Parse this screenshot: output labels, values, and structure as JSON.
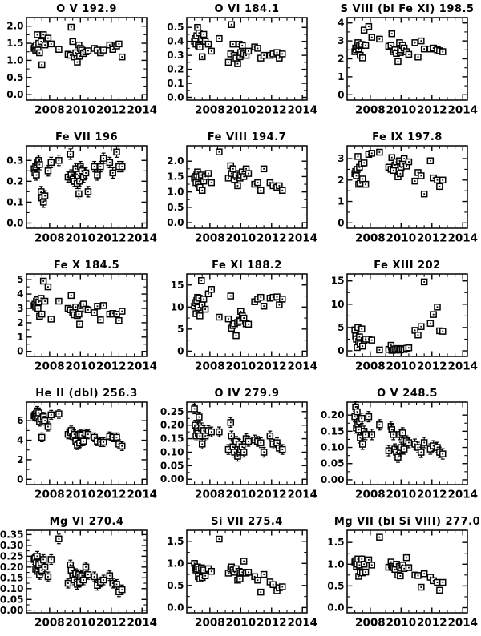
{
  "figure": {
    "background": "#ffffff",
    "ink_color": "#000000",
    "marker": "open-square-with-dot",
    "layout": {
      "cols": 3,
      "rows": 5
    }
  },
  "chart_data": {
    "type": "scatter",
    "legend": "none",
    "grid": "off",
    "xlim": [
      2006.5,
      2014.3
    ],
    "xticks": [
      2008,
      2010,
      2012,
      2014
    ],
    "xtick_labels": [
      "2008",
      "2010",
      "2012",
      "2014"
    ],
    "x_years": [
      2007.0,
      2007.05,
      2007.1,
      2007.15,
      2007.2,
      2007.25,
      2007.3,
      2007.35,
      2007.45,
      2007.5,
      2007.6,
      2007.7,
      2007.9,
      2008.1,
      2008.6,
      2009.2,
      2009.35,
      2009.4,
      2009.5,
      2009.6,
      2009.7,
      2009.8,
      2009.9,
      2009.95,
      2010.0,
      2010.1,
      2010.2,
      2010.35,
      2010.5,
      2010.9,
      2011.1,
      2011.3,
      2011.5,
      2011.9,
      2012.1,
      2012.35,
      2012.5,
      2012.7
    ],
    "subplots": [
      {
        "title": "O V 192.9",
        "ylim": [
          -0.16,
          2.25
        ],
        "yticks": [
          0,
          0.5,
          1,
          1.5,
          2
        ],
        "ylabels": [
          "0.0",
          "0.5",
          "1.0",
          "1.5",
          "2.0"
        ],
        "err": 0.06,
        "y": [
          1.35,
          1.4,
          1.28,
          1.45,
          1.75,
          1.3,
          1.5,
          1.22,
          1.55,
          0.87,
          1.75,
          1.45,
          1.65,
          1.48,
          1.32,
          1.18,
          1.15,
          1.97,
          1.55,
          1.1,
          1.22,
          0.95,
          1.45,
          1.12,
          1.35,
          1.3,
          1.2,
          1.25,
          1.28,
          1.35,
          1.3,
          1.22,
          1.3,
          1.45,
          1.32,
          1.42,
          1.48,
          1.1
        ]
      },
      {
        "title": "O VI 184.1",
        "ylim": [
          -0.02,
          0.57
        ],
        "yticks": [
          0,
          0.1,
          0.2,
          0.3,
          0.4,
          0.5
        ],
        "ylabels": [
          "0.0",
          "0.1",
          "0.2",
          "0.3",
          "0.4",
          "0.5"
        ],
        "err": 0.018,
        "y": [
          0.4,
          0.42,
          0.38,
          0.44,
          0.5,
          0.37,
          0.46,
          0.36,
          0.42,
          0.29,
          0.45,
          0.4,
          0.38,
          0.33,
          0.42,
          0.25,
          0.31,
          0.52,
          0.38,
          0.3,
          0.28,
          0.24,
          0.38,
          0.29,
          0.32,
          0.37,
          0.31,
          0.3,
          0.33,
          0.36,
          0.35,
          0.28,
          0.3,
          0.3,
          0.31,
          0.32,
          0.28,
          0.31
        ]
      },
      {
        "title": "S VIII (bl Fe XI) 198.5",
        "ylim": [
          -0.3,
          4.3
        ],
        "yticks": [
          0,
          1,
          2,
          3,
          4
        ],
        "ylabels": [
          "0",
          "1",
          "2",
          "3",
          "4"
        ],
        "err": 0.1,
        "y": [
          2.4,
          2.6,
          2.5,
          2.7,
          2.9,
          2.55,
          2.75,
          2.2,
          2.8,
          2.05,
          3.6,
          2.75,
          3.8,
          3.2,
          3.1,
          2.7,
          2.75,
          3.4,
          2.4,
          2.5,
          2.3,
          1.85,
          2.9,
          2.35,
          2.5,
          2.75,
          2.6,
          2.4,
          2.25,
          2.9,
          2.1,
          3.0,
          2.55,
          2.55,
          2.6,
          2.5,
          2.45,
          2.4
        ]
      },
      {
        "title": "Fe VII 196",
        "ylim": [
          -0.025,
          0.37
        ],
        "yticks": [
          0,
          0.1,
          0.2,
          0.3
        ],
        "ylabels": [
          "0.0",
          "0.1",
          "0.2",
          "0.3"
        ],
        "err": 0.025,
        "y": [
          0.26,
          0.24,
          0.27,
          0.23,
          0.28,
          0.29,
          0.3,
          0.28,
          0.15,
          0.12,
          0.1,
          0.13,
          0.25,
          0.29,
          0.3,
          0.22,
          0.33,
          0.23,
          0.21,
          0.2,
          0.26,
          0.19,
          0.14,
          0.2,
          0.27,
          0.25,
          0.22,
          0.24,
          0.15,
          0.27,
          0.23,
          0.27,
          0.31,
          0.29,
          0.24,
          0.34,
          0.27,
          0.27
        ]
      },
      {
        "title": "Fe VIII 194.7",
        "ylim": [
          -0.18,
          2.5
        ],
        "yticks": [
          0,
          0.5,
          1,
          1.5,
          2
        ],
        "ylabels": [
          "0.0",
          "0.5",
          "1.0",
          "1.5",
          "2.0"
        ],
        "err": 0.07,
        "y": [
          1.45,
          1.5,
          1.3,
          1.55,
          1.65,
          1.25,
          1.5,
          1.15,
          1.55,
          1.05,
          1.35,
          1.5,
          1.6,
          1.3,
          2.3,
          1.45,
          1.85,
          1.6,
          1.75,
          1.4,
          1.55,
          1.2,
          1.6,
          1.45,
          1.55,
          1.65,
          1.5,
          1.75,
          1.6,
          1.25,
          1.3,
          1.05,
          1.75,
          1.3,
          1.2,
          1.15,
          1.2,
          1.05
        ]
      },
      {
        "title": "Fe IX 197.8",
        "ylim": [
          -0.25,
          3.6
        ],
        "yticks": [
          0,
          1,
          2,
          3
        ],
        "ylabels": [
          "0",
          "1",
          "2",
          "3"
        ],
        "err": 0.1,
        "y": [
          2.3,
          2.4,
          2.2,
          2.5,
          3.1,
          1.8,
          2.6,
          1.85,
          2.75,
          2.05,
          2.8,
          1.8,
          3.2,
          3.25,
          3.3,
          2.6,
          2.5,
          3.05,
          2.45,
          2.7,
          2.85,
          2.15,
          2.9,
          2.3,
          2.6,
          2.75,
          3.0,
          2.65,
          2.85,
          1.95,
          2.35,
          2.2,
          1.35,
          2.9,
          2.1,
          2.0,
          1.7,
          2.0
        ]
      },
      {
        "title": "Fe X 184.5",
        "ylim": [
          -0.35,
          5.4
        ],
        "yticks": [
          0,
          1,
          2,
          3,
          4,
          5
        ],
        "ylabels": [
          "0",
          "1",
          "2",
          "3",
          "4",
          "5"
        ],
        "err": 0.12,
        "y": [
          3.2,
          3.3,
          3.1,
          3.5,
          3.6,
          3.0,
          3.45,
          2.45,
          3.7,
          2.6,
          4.9,
          3.5,
          4.5,
          2.25,
          3.5,
          3.0,
          2.9,
          3.9,
          2.7,
          2.55,
          3.1,
          2.5,
          2.6,
          1.9,
          3.0,
          3.2,
          3.3,
          2.95,
          2.9,
          2.7,
          3.15,
          2.2,
          3.2,
          2.6,
          2.65,
          2.6,
          2.15,
          2.8
        ]
      },
      {
        "title": "Fe XI 188.2",
        "ylim": [
          -1.2,
          17.5
        ],
        "yticks": [
          0,
          5,
          10,
          15
        ],
        "ylabels": [
          "0",
          "5",
          "10",
          "15"
        ],
        "err": 0.35,
        "y": [
          10.2,
          11.0,
          8.5,
          11.5,
          12.2,
          9.9,
          12.0,
          8.0,
          16.0,
          10.5,
          11.8,
          9.5,
          13.0,
          14.0,
          7.7,
          7.3,
          12.5,
          5.2,
          5.8,
          6.2,
          3.5,
          6.5,
          7.0,
          6.8,
          9.0,
          8.0,
          7.5,
          6.2,
          6.1,
          11.2,
          11.8,
          12.2,
          10.2,
          12.0,
          12.2,
          12.3,
          10.5,
          11.8
        ]
      },
      {
        "title": "Fe XIII 202",
        "ylim": [
          -1.2,
          16.5
        ],
        "yticks": [
          0,
          5,
          10,
          15
        ],
        "ylabels": [
          "0",
          "5",
          "10",
          "15"
        ],
        "err": 0.3,
        "y": [
          4.5,
          3.2,
          2.5,
          0.7,
          5.0,
          2.0,
          3.0,
          1.5,
          4.7,
          1.0,
          2.2,
          2.5,
          2.5,
          2.3,
          0.2,
          0.3,
          1.2,
          0.1,
          0.25,
          0.4,
          0.15,
          0.5,
          0.3,
          0.2,
          0.35,
          0.45,
          0.3,
          0.55,
          0.65,
          4.4,
          3.4,
          5.2,
          14.8,
          5.9,
          7.8,
          9.4,
          4.3,
          4.2
        ]
      },
      {
        "title": "He II (dbl) 256.3",
        "ylim": [
          -0.55,
          7.9
        ],
        "yticks": [
          0,
          2,
          4,
          6
        ],
        "ylabels": [
          "0",
          "2",
          "4",
          "6"
        ],
        "err": 0.45,
        "y": [
          6.5,
          6.6,
          6.4,
          6.7,
          7.0,
          6.3,
          6.8,
          5.9,
          6.2,
          4.3,
          6.4,
          6.0,
          5.4,
          6.6,
          6.7,
          4.6,
          4.8,
          5.0,
          4.4,
          4.6,
          3.9,
          3.5,
          4.5,
          3.7,
          4.6,
          4.5,
          3.9,
          4.7,
          4.6,
          4.3,
          3.9,
          3.8,
          3.8,
          4.4,
          4.3,
          4.3,
          3.6,
          3.4
        ]
      },
      {
        "title": "O IV 279.9",
        "ylim": [
          -0.02,
          0.285
        ],
        "yticks": [
          0,
          0.05,
          0.1,
          0.15,
          0.2,
          0.25
        ],
        "ylabels": [
          "0.00",
          "0.05",
          "0.10",
          "0.15",
          "0.20",
          "0.25"
        ],
        "err": 0.018,
        "y": [
          0.26,
          0.2,
          0.16,
          0.18,
          0.19,
          0.17,
          0.23,
          0.16,
          0.19,
          0.13,
          0.18,
          0.16,
          0.18,
          0.175,
          0.175,
          0.11,
          0.21,
          0.16,
          0.12,
          0.1,
          0.14,
          0.085,
          0.13,
          0.1,
          0.11,
          0.12,
          0.1,
          0.15,
          0.14,
          0.145,
          0.14,
          0.135,
          0.1,
          0.16,
          0.13,
          0.135,
          0.115,
          0.11
        ]
      },
      {
        "title": "O V 248.5",
        "ylim": [
          -0.015,
          0.24
        ],
        "yticks": [
          0,
          0.05,
          0.1,
          0.15,
          0.2
        ],
        "ylabels": [
          "0.00",
          "0.05",
          "0.10",
          "0.15",
          "0.20"
        ],
        "err": 0.016,
        "y": [
          0.195,
          0.225,
          0.16,
          0.21,
          0.17,
          0.155,
          0.18,
          0.13,
          0.19,
          0.11,
          0.15,
          0.14,
          0.195,
          0.14,
          0.17,
          0.09,
          0.165,
          0.155,
          0.14,
          0.095,
          0.085,
          0.07,
          0.14,
          0.09,
          0.1,
          0.145,
          0.095,
          0.12,
          0.115,
          0.11,
          0.1,
          0.085,
          0.115,
          0.095,
          0.105,
          0.1,
          0.085,
          0.08
        ]
      },
      {
        "title": "Mg VI 270.4",
        "ylim": [
          -0.012,
          0.37
        ],
        "yticks": [
          0,
          0.05,
          0.1,
          0.15,
          0.2,
          0.25,
          0.3,
          0.35
        ],
        "ylabels": [
          "0.00",
          "0.05",
          "0.10",
          "0.15",
          "0.20",
          "0.25",
          "0.30",
          "0.35"
        ],
        "err": 0.022,
        "y": [
          0.235,
          0.24,
          0.19,
          0.22,
          0.25,
          0.18,
          0.21,
          0.165,
          0.22,
          0.185,
          0.235,
          0.2,
          0.155,
          0.235,
          0.33,
          0.125,
          0.21,
          0.185,
          0.16,
          0.14,
          0.17,
          0.12,
          0.165,
          0.13,
          0.155,
          0.16,
          0.14,
          0.2,
          0.165,
          0.155,
          0.115,
          0.13,
          0.14,
          0.16,
          0.125,
          0.12,
          0.085,
          0.095
        ]
      },
      {
        "title": "Si VII 275.4",
        "ylim": [
          -0.12,
          1.75
        ],
        "yticks": [
          0,
          0.5,
          1,
          1.5
        ],
        "ylabels": [
          "0.0",
          "0.5",
          "1.0",
          "1.5"
        ],
        "err": 0.05,
        "y": [
          1.0,
          0.9,
          0.85,
          0.88,
          0.92,
          0.7,
          0.87,
          0.65,
          0.9,
          0.68,
          0.85,
          0.72,
          0.88,
          0.82,
          1.55,
          0.78,
          0.88,
          0.92,
          0.85,
          0.8,
          0.88,
          0.62,
          0.82,
          0.65,
          0.78,
          0.8,
          1.05,
          0.78,
          0.8,
          0.7,
          0.62,
          0.35,
          0.75,
          0.58,
          0.52,
          0.38,
          0.45,
          0.47
        ]
      },
      {
        "title": "Mg VII (bl Si VIII) 277.0",
        "ylim": [
          -0.12,
          1.78
        ],
        "yticks": [
          0,
          0.5,
          1,
          1.5
        ],
        "ylabels": [
          "0.0",
          "0.5",
          "1.0",
          "1.5"
        ],
        "err": 0.06,
        "y": [
          1.05,
          1.08,
          0.95,
          1.0,
          1.12,
          0.72,
          0.98,
          0.82,
          1.12,
          0.8,
          1.0,
          0.82,
          1.1,
          0.98,
          1.62,
          0.93,
          1.05,
          0.95,
          0.92,
          0.88,
          1.0,
          0.75,
          0.95,
          0.73,
          0.92,
          0.98,
          0.9,
          1.15,
          0.92,
          0.75,
          0.74,
          0.47,
          0.78,
          0.7,
          0.62,
          0.58,
          0.4,
          0.58
        ]
      }
    ]
  }
}
